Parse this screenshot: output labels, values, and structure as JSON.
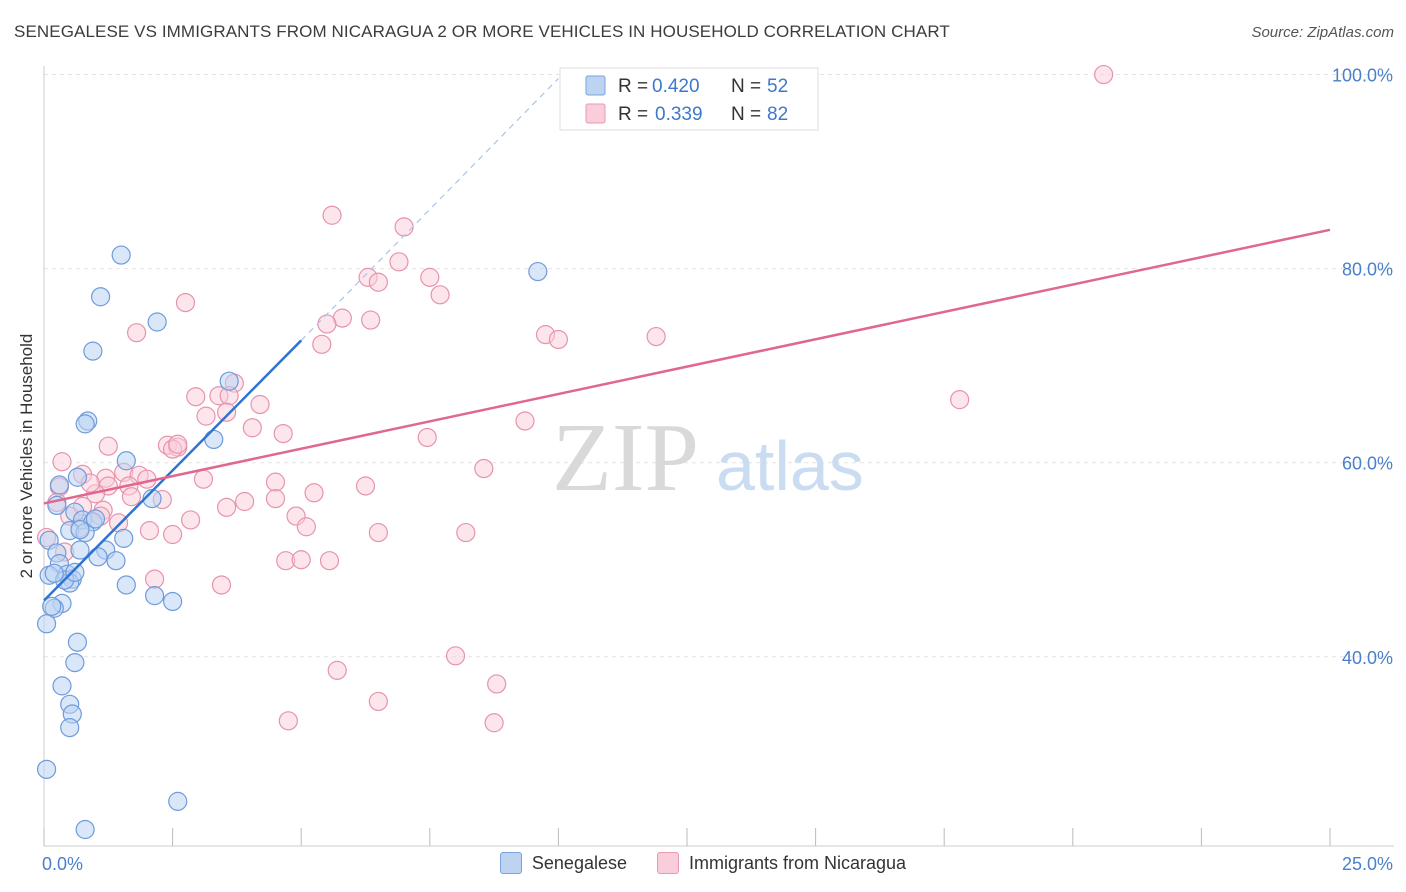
{
  "title": "SENEGALESE VS IMMIGRANTS FROM NICARAGUA 2 OR MORE VEHICLES IN HOUSEHOLD CORRELATION CHART",
  "source": "Source: ZipAtlas.com",
  "watermark": {
    "zip": "ZIP",
    "atlas": "atlas"
  },
  "colors": {
    "blue": "#4a86d8",
    "blue_fill": "#bcd4f2",
    "blue_line": "#2f74d0",
    "pink": "#e57fa0",
    "pink_fill": "#f9cdd9",
    "pink_line": "#e0678f",
    "axis_label": "#4a7fc9"
  },
  "legend_top": [
    {
      "r_label": "R =",
      "r_value": "0.420",
      "n_label": "N =",
      "n_value": "52"
    },
    {
      "r_label": "R =",
      "r_value": "0.339",
      "n_label": "N =",
      "n_value": "82"
    }
  ],
  "chart_data": {
    "type": "scatter",
    "xlabel": "",
    "ylabel": "2 or more Vehicles in Household",
    "xlim": [
      0,
      25
    ],
    "ylim": [
      20.5,
      101.5
    ],
    "x_tick_labels": [
      "0.0%",
      "25.0%"
    ],
    "y_ticks": [
      40,
      60,
      80,
      100
    ],
    "y_tick_labels": [
      "40.0%",
      "60.0%",
      "80.0%",
      "100.0%"
    ],
    "grid": true,
    "series": [
      {
        "name": "Senegalese",
        "color": "blue",
        "R": 0.42,
        "N": 52,
        "trend": {
          "x0": 0.0,
          "y0": 45.8,
          "x1": 5.0,
          "y1": 72.6
        },
        "trend_extension": {
          "x0": 5.0,
          "y0": 72.6,
          "x1": 10.0,
          "y1": 99.6
        },
        "points": [
          [
            1.5,
            81.4
          ],
          [
            1.1,
            77.1
          ],
          [
            2.2,
            74.5
          ],
          [
            0.95,
            71.5
          ],
          [
            9.6,
            79.7
          ],
          [
            3.6,
            68.4
          ],
          [
            0.85,
            64.3
          ],
          [
            0.8,
            64.0
          ],
          [
            3.3,
            62.4
          ],
          [
            1.6,
            60.2
          ],
          [
            0.65,
            58.5
          ],
          [
            0.3,
            57.7
          ],
          [
            2.1,
            56.3
          ],
          [
            0.25,
            55.6
          ],
          [
            0.6,
            54.9
          ],
          [
            0.75,
            54.1
          ],
          [
            0.95,
            53.9
          ],
          [
            0.5,
            53.0
          ],
          [
            0.8,
            52.8
          ],
          [
            1.55,
            52.2
          ],
          [
            0.1,
            52.0
          ],
          [
            0.7,
            51.0
          ],
          [
            1.2,
            51.0
          ],
          [
            1.05,
            50.3
          ],
          [
            1.4,
            49.9
          ],
          [
            0.25,
            50.7
          ],
          [
            0.3,
            49.6
          ],
          [
            0.45,
            48.5
          ],
          [
            0.1,
            48.4
          ],
          [
            0.55,
            48.0
          ],
          [
            0.5,
            47.6
          ],
          [
            1.6,
            47.4
          ],
          [
            2.15,
            46.3
          ],
          [
            2.5,
            45.7
          ],
          [
            0.35,
            45.5
          ],
          [
            0.2,
            45.0
          ],
          [
            0.05,
            43.4
          ],
          [
            0.65,
            41.5
          ],
          [
            0.6,
            39.4
          ],
          [
            0.35,
            37.0
          ],
          [
            0.5,
            35.1
          ],
          [
            0.55,
            34.1
          ],
          [
            0.5,
            32.7
          ],
          [
            0.05,
            28.4
          ],
          [
            2.6,
            25.1
          ],
          [
            0.8,
            22.2
          ],
          [
            0.4,
            47.9
          ],
          [
            0.6,
            48.7
          ],
          [
            1.0,
            54.2
          ],
          [
            0.2,
            48.6
          ],
          [
            0.15,
            45.2
          ],
          [
            0.7,
            53.1
          ]
        ]
      },
      {
        "name": "Immigrants from Nicaragua",
        "color": "pink",
        "R": 0.339,
        "N": 82,
        "trend": {
          "x0": 0.0,
          "y0": 55.8,
          "x1": 25.0,
          "y1": 84.0
        },
        "points": [
          [
            20.6,
            100.0
          ],
          [
            5.6,
            85.5
          ],
          [
            7.0,
            84.3
          ],
          [
            6.9,
            80.7
          ],
          [
            6.3,
            79.1
          ],
          [
            7.5,
            79.1
          ],
          [
            6.5,
            78.6
          ],
          [
            7.7,
            77.3
          ],
          [
            2.75,
            76.5
          ],
          [
            5.8,
            74.9
          ],
          [
            6.35,
            74.7
          ],
          [
            5.5,
            74.3
          ],
          [
            1.8,
            73.4
          ],
          [
            9.75,
            73.2
          ],
          [
            10.0,
            72.7
          ],
          [
            11.9,
            73.0
          ],
          [
            5.4,
            72.2
          ],
          [
            3.7,
            68.2
          ],
          [
            17.8,
            66.5
          ],
          [
            2.95,
            66.8
          ],
          [
            3.4,
            66.9
          ],
          [
            3.6,
            66.9
          ],
          [
            4.2,
            66.0
          ],
          [
            3.55,
            65.2
          ],
          [
            3.15,
            64.8
          ],
          [
            9.35,
            64.3
          ],
          [
            4.05,
            63.6
          ],
          [
            4.65,
            63.0
          ],
          [
            7.45,
            62.6
          ],
          [
            1.25,
            61.7
          ],
          [
            2.4,
            61.8
          ],
          [
            2.6,
            61.6
          ],
          [
            2.5,
            61.4
          ],
          [
            0.35,
            60.1
          ],
          [
            8.55,
            59.4
          ],
          [
            1.55,
            59.0
          ],
          [
            0.75,
            58.8
          ],
          [
            1.85,
            58.7
          ],
          [
            1.2,
            58.4
          ],
          [
            2.0,
            58.3
          ],
          [
            3.1,
            58.3
          ],
          [
            4.5,
            58.0
          ],
          [
            1.25,
            57.6
          ],
          [
            1.65,
            57.6
          ],
          [
            6.25,
            57.6
          ],
          [
            0.3,
            57.5
          ],
          [
            5.25,
            56.9
          ],
          [
            1.7,
            56.5
          ],
          [
            4.5,
            56.3
          ],
          [
            2.3,
            56.2
          ],
          [
            3.9,
            56.0
          ],
          [
            0.25,
            55.9
          ],
          [
            0.75,
            55.5
          ],
          [
            3.55,
            55.4
          ],
          [
            1.15,
            55.1
          ],
          [
            1.1,
            54.5
          ],
          [
            4.9,
            54.5
          ],
          [
            0.5,
            54.5
          ],
          [
            2.85,
            54.1
          ],
          [
            1.45,
            53.8
          ],
          [
            5.1,
            53.4
          ],
          [
            0.7,
            53.3
          ],
          [
            2.05,
            53.0
          ],
          [
            2.5,
            52.6
          ],
          [
            6.5,
            52.8
          ],
          [
            8.2,
            52.8
          ],
          [
            0.05,
            52.3
          ],
          [
            4.7,
            49.9
          ],
          [
            5.0,
            50.0
          ],
          [
            5.55,
            49.9
          ],
          [
            2.15,
            48.0
          ],
          [
            3.45,
            47.4
          ],
          [
            8.0,
            40.1
          ],
          [
            5.7,
            38.6
          ],
          [
            8.8,
            37.2
          ],
          [
            6.5,
            35.4
          ],
          [
            4.75,
            33.4
          ],
          [
            8.75,
            33.2
          ],
          [
            0.4,
            50.8
          ],
          [
            1.0,
            56.8
          ],
          [
            0.9,
            57.9
          ],
          [
            2.6,
            61.9
          ]
        ]
      }
    ]
  }
}
